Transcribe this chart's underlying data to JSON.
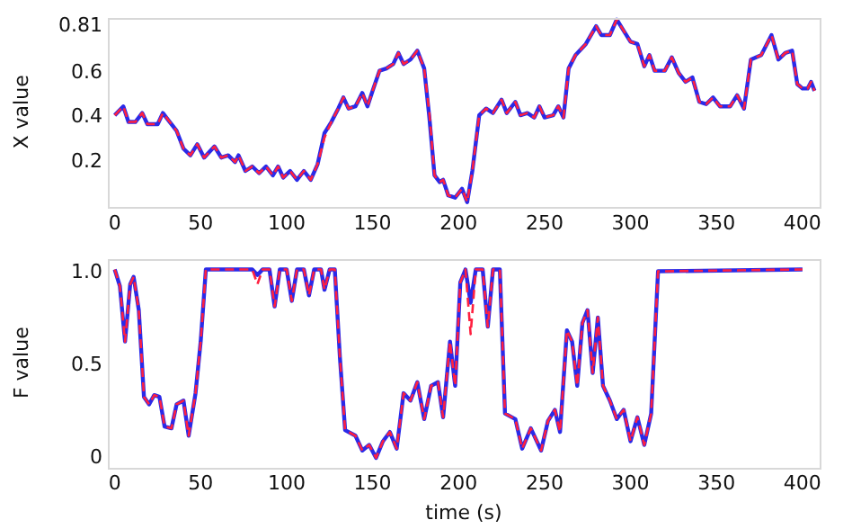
{
  "chart_data": [
    {
      "type": "line",
      "ylabel": "X value",
      "xlim": [
        -4,
        410
      ],
      "xticks": [
        0,
        50,
        100,
        150,
        200,
        250,
        300,
        350,
        400
      ],
      "ylim": [
        0,
        0.85
      ],
      "yticks": [
        0.2,
        0.4,
        0.6,
        0.81
      ],
      "x": [
        0,
        5,
        8,
        12,
        16,
        19,
        25,
        28,
        32,
        36,
        40,
        44,
        48,
        52,
        58,
        62,
        66,
        70,
        72,
        76,
        80,
        84,
        88,
        92,
        95,
        98,
        102,
        106,
        110,
        114,
        118,
        122,
        126,
        130,
        133,
        136,
        140,
        144,
        147,
        150,
        154,
        158,
        162,
        165,
        168,
        172,
        176,
        180,
        183,
        186,
        189,
        191,
        194,
        198,
        202,
        205,
        208,
        212,
        216,
        220,
        225,
        228,
        233,
        236,
        240,
        244,
        247,
        250,
        255,
        258,
        261,
        264,
        268,
        274,
        280,
        283,
        288,
        292,
        296,
        300,
        304,
        308,
        311,
        314,
        320,
        324,
        328,
        332,
        336,
        340,
        344,
        348,
        352,
        358,
        362,
        366,
        370,
        376,
        382,
        386,
        390,
        394,
        397,
        400,
        403,
        405,
        407
      ],
      "series": [
        {
          "color": "#2a2ae8",
          "line_style": "solid",
          "values": [
            0.41,
            0.45,
            0.38,
            0.38,
            0.42,
            0.37,
            0.37,
            0.42,
            0.38,
            0.34,
            0.26,
            0.23,
            0.28,
            0.22,
            0.27,
            0.22,
            0.23,
            0.2,
            0.23,
            0.16,
            0.18,
            0.15,
            0.18,
            0.14,
            0.18,
            0.13,
            0.16,
            0.12,
            0.16,
            0.12,
            0.19,
            0.33,
            0.38,
            0.44,
            0.49,
            0.44,
            0.45,
            0.51,
            0.45,
            0.52,
            0.61,
            0.62,
            0.64,
            0.69,
            0.64,
            0.66,
            0.7,
            0.62,
            0.4,
            0.14,
            0.11,
            0.12,
            0.05,
            0.04,
            0.08,
            0.02,
            0.16,
            0.41,
            0.44,
            0.42,
            0.48,
            0.42,
            0.47,
            0.41,
            0.42,
            0.4,
            0.45,
            0.4,
            0.41,
            0.45,
            0.4,
            0.62,
            0.68,
            0.73,
            0.81,
            0.77,
            0.77,
            0.84,
            0.79,
            0.74,
            0.73,
            0.63,
            0.68,
            0.61,
            0.61,
            0.67,
            0.6,
            0.56,
            0.58,
            0.47,
            0.46,
            0.49,
            0.45,
            0.45,
            0.5,
            0.44,
            0.66,
            0.68,
            0.77,
            0.66,
            0.69,
            0.7,
            0.55,
            0.53,
            0.53,
            0.56,
            0.52
          ]
        },
        {
          "color": "#ff2040",
          "line_style": "dashed",
          "values": [
            0.41,
            0.45,
            0.38,
            0.38,
            0.42,
            0.37,
            0.37,
            0.42,
            0.38,
            0.34,
            0.26,
            0.23,
            0.28,
            0.22,
            0.27,
            0.22,
            0.23,
            0.2,
            0.23,
            0.16,
            0.18,
            0.15,
            0.18,
            0.14,
            0.18,
            0.13,
            0.16,
            0.12,
            0.16,
            0.12,
            0.19,
            0.31,
            0.38,
            0.44,
            0.49,
            0.44,
            0.45,
            0.51,
            0.45,
            0.52,
            0.61,
            0.62,
            0.64,
            0.69,
            0.64,
            0.66,
            0.7,
            0.62,
            0.42,
            0.14,
            0.11,
            0.12,
            0.05,
            0.04,
            0.08,
            0.02,
            0.16,
            0.41,
            0.44,
            0.42,
            0.48,
            0.42,
            0.47,
            0.41,
            0.42,
            0.4,
            0.45,
            0.4,
            0.41,
            0.45,
            0.4,
            0.62,
            0.68,
            0.73,
            0.81,
            0.77,
            0.77,
            0.84,
            0.79,
            0.74,
            0.73,
            0.63,
            0.68,
            0.61,
            0.61,
            0.67,
            0.6,
            0.56,
            0.58,
            0.47,
            0.46,
            0.49,
            0.45,
            0.45,
            0.5,
            0.44,
            0.66,
            0.68,
            0.77,
            0.66,
            0.69,
            0.7,
            0.55,
            0.53,
            0.53,
            0.56,
            0.52
          ]
        }
      ]
    },
    {
      "type": "line",
      "ylabel": "F value",
      "xlabel": "time (s)",
      "xlim": [
        -4,
        410
      ],
      "xticks": [
        0,
        50,
        100,
        150,
        200,
        250,
        300,
        350,
        400
      ],
      "ylim": [
        -0.05,
        1.08
      ],
      "yticks": [
        0,
        0.5,
        {
          "value": 1,
          "label": "1.0"
        }
      ],
      "x": [
        0,
        3,
        6,
        9,
        11,
        14,
        17,
        20,
        23,
        26,
        29,
        33,
        36,
        40,
        43,
        47,
        50,
        53,
        80,
        83,
        86,
        90,
        93,
        96,
        100,
        103,
        106,
        110,
        113,
        116,
        120,
        122,
        125,
        128,
        131,
        134,
        140,
        144,
        148,
        152,
        156,
        160,
        164,
        168,
        172,
        176,
        180,
        184,
        188,
        191,
        195,
        198,
        201,
        204,
        207,
        210,
        214,
        217,
        220,
        224,
        227,
        233,
        237,
        242,
        248,
        252,
        256,
        259,
        263,
        266,
        269,
        272,
        275,
        278,
        281,
        284,
        288,
        292,
        296,
        300,
        304,
        308,
        312,
        316,
        400
      ],
      "series": [
        {
          "color": "#2a2ae8",
          "line_style": "solid",
          "values": [
            1.02,
            0.93,
            0.63,
            0.94,
            0.98,
            0.8,
            0.33,
            0.29,
            0.34,
            0.33,
            0.17,
            0.16,
            0.29,
            0.31,
            0.12,
            0.35,
            0.63,
            1.02,
            1.02,
            0.99,
            1.02,
            1.02,
            0.82,
            1.02,
            1.02,
            0.85,
            1.02,
            1.02,
            0.88,
            1.02,
            1.02,
            0.91,
            1.02,
            1.02,
            0.54,
            0.15,
            0.12,
            0.04,
            0.07,
            0.0,
            0.09,
            0.14,
            0.05,
            0.35,
            0.31,
            0.41,
            0.21,
            0.39,
            0.41,
            0.22,
            0.63,
            0.39,
            0.95,
            1.02,
            0.84,
            1.02,
            1.02,
            0.71,
            1.02,
            1.02,
            0.24,
            0.21,
            0.05,
            0.16,
            0.04,
            0.2,
            0.26,
            0.14,
            0.69,
            0.63,
            0.39,
            0.73,
            0.8,
            0.46,
            0.76,
            0.39,
            0.31,
            0.21,
            0.26,
            0.09,
            0.22,
            0.07,
            0.24,
            1.01,
            1.02
          ]
        },
        {
          "color": "#ff2040",
          "line_style": "dashed",
          "values": [
            1.02,
            0.93,
            0.63,
            0.94,
            0.98,
            0.8,
            0.33,
            0.29,
            0.34,
            0.33,
            0.17,
            0.16,
            0.29,
            0.31,
            0.12,
            0.35,
            0.63,
            1.02,
            1.02,
            0.94,
            1.02,
            1.02,
            0.82,
            1.02,
            1.02,
            0.85,
            1.02,
            1.02,
            0.88,
            1.02,
            1.02,
            0.91,
            1.02,
            1.02,
            0.54,
            0.15,
            0.12,
            0.04,
            0.07,
            0.0,
            0.09,
            0.14,
            0.05,
            0.35,
            0.31,
            0.41,
            0.21,
            0.39,
            0.41,
            0.22,
            0.63,
            0.39,
            0.95,
            1.02,
            0.67,
            1.02,
            1.02,
            0.71,
            1.02,
            1.02,
            0.24,
            0.21,
            0.05,
            0.16,
            0.04,
            0.2,
            0.26,
            0.14,
            0.69,
            0.63,
            0.39,
            0.73,
            0.8,
            0.46,
            0.76,
            0.39,
            0.31,
            0.21,
            0.26,
            0.09,
            0.22,
            0.07,
            0.24,
            1.01,
            1.02
          ]
        }
      ]
    }
  ]
}
